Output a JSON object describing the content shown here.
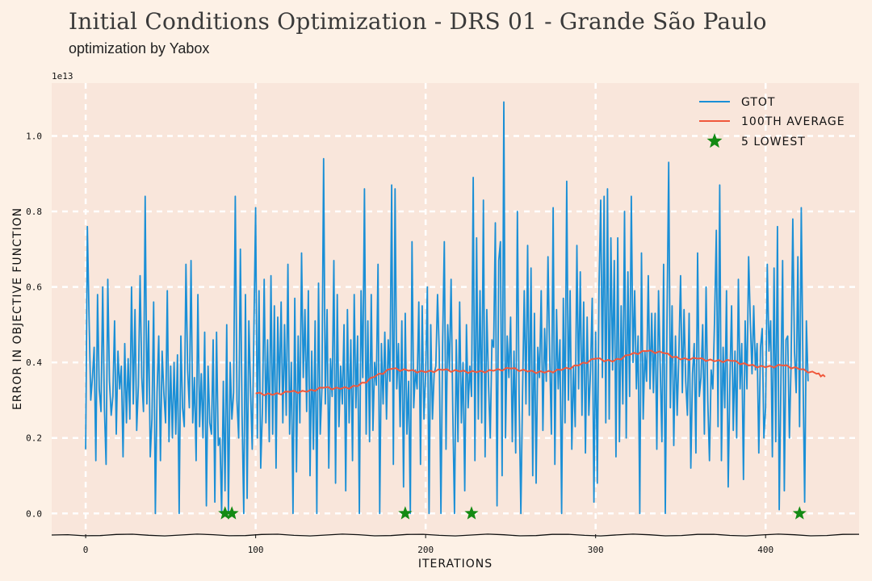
{
  "title": "Initial Conditions Optimization - DRS 01 - Grande São Paulo",
  "subtitle": "optimization by Yabox",
  "colors": {
    "background": "#fdf1e6",
    "plot_area": "#f9e6db",
    "gtot": "#1a8fd6",
    "average": "#f0583c",
    "lowest": "#138a13",
    "grid": "#ffffff"
  },
  "chart_data": {
    "type": "line",
    "xlabel": "ITERATIONS",
    "ylabel": "ERROR IN OBJECTIVE FUNCTION",
    "y_offset_label": "1e13",
    "xlim": [
      -20,
      455
    ],
    "ylim": [
      -0.055,
      1.14
    ],
    "xticks": [
      0,
      100,
      200,
      300,
      400
    ],
    "yticks": [
      0.0,
      0.2,
      0.4,
      0.6,
      0.8,
      1.0
    ],
    "ytick_labels": [
      "0.0",
      "0.2",
      "0.4",
      "0.6",
      "0.8",
      "1.0"
    ],
    "grid": true,
    "legend_position": "top-right",
    "legend": [
      "GTOT",
      "100TH AVERAGE",
      "5 LOWEST"
    ],
    "series": [
      {
        "name": "GTOT",
        "x_start": 0,
        "values": [
          0.17,
          0.76,
          0.52,
          0.3,
          0.36,
          0.44,
          0.14,
          0.58,
          0.33,
          0.27,
          0.6,
          0.28,
          0.13,
          0.62,
          0.35,
          0.26,
          0.31,
          0.51,
          0.21,
          0.43,
          0.33,
          0.39,
          0.15,
          0.45,
          0.24,
          0.41,
          0.25,
          0.6,
          0.29,
          0.54,
          0.22,
          0.34,
          0.63,
          0.36,
          0.27,
          0.84,
          0.29,
          0.51,
          0.15,
          0.25,
          0.56,
          0.0,
          0.32,
          0.47,
          0.14,
          0.43,
          0.32,
          0.24,
          0.59,
          0.19,
          0.39,
          0.2,
          0.4,
          0.21,
          0.42,
          0.0,
          0.47,
          0.28,
          0.23,
          0.66,
          0.38,
          0.28,
          0.67,
          0.24,
          0.36,
          0.14,
          0.58,
          0.23,
          0.37,
          0.2,
          0.48,
          0.02,
          0.39,
          0.24,
          0.21,
          0.46,
          0.03,
          0.48,
          0.18,
          0.2,
          0.0,
          0.35,
          0.06,
          0.5,
          0.0,
          0.4,
          0.25,
          0.32,
          0.84,
          0.3,
          0.2,
          0.7,
          0.26,
          0.0,
          0.58,
          0.04,
          0.51,
          0.33,
          0.17,
          0.49,
          0.81,
          0.2,
          0.59,
          0.12,
          0.28,
          0.62,
          0.24,
          0.46,
          0.19,
          0.63,
          0.21,
          0.55,
          0.12,
          0.52,
          0.32,
          0.56,
          0.24,
          0.5,
          0.26,
          0.66,
          0.21,
          0.4,
          0.0,
          0.57,
          0.11,
          0.47,
          0.24,
          0.69,
          0.36,
          0.54,
          0.27,
          0.59,
          0.1,
          0.43,
          0.17,
          0.51,
          0.0,
          0.61,
          0.21,
          0.33,
          0.94,
          0.29,
          0.54,
          0.12,
          0.41,
          0.31,
          0.67,
          0.08,
          0.58,
          0.23,
          0.39,
          0.29,
          0.5,
          0.06,
          0.54,
          0.24,
          0.46,
          0.14,
          0.58,
          0.28,
          0.47,
          0.0,
          0.59,
          0.36,
          0.86,
          0.21,
          0.51,
          0.19,
          0.58,
          0.22,
          0.4,
          0.34,
          0.66,
          0.0,
          0.45,
          0.29,
          0.48,
          0.25,
          0.46,
          0.35,
          0.87,
          0.13,
          0.86,
          0.33,
          0.45,
          0.23,
          0.51,
          0.07,
          0.53,
          0.21,
          0.35,
          0.0,
          0.72,
          0.28,
          0.38,
          0.33,
          0.56,
          0.13,
          0.55,
          0.25,
          0.37,
          0.6,
          0.0,
          0.5,
          0.25,
          0.37,
          0.39,
          0.58,
          0.43,
          0.0,
          0.45,
          0.72,
          0.17,
          0.5,
          0.38,
          0.62,
          0.27,
          0.0,
          0.46,
          0.19,
          0.56,
          0.24,
          0.4,
          0.06,
          0.5,
          0.28,
          0.39,
          0.31,
          0.89,
          0.14,
          0.73,
          0.25,
          0.59,
          0.24,
          0.83,
          0.15,
          0.54,
          0.34,
          0.2,
          0.46,
          0.44,
          0.77,
          0.02,
          0.67,
          0.72,
          0.1,
          1.09,
          0.2,
          0.47,
          0.36,
          0.52,
          0.19,
          0.43,
          0.16,
          0.8,
          0.31,
          0.0,
          0.32,
          0.59,
          0.29,
          0.71,
          0.26,
          0.65,
          0.1,
          0.53,
          0.08,
          0.44,
          0.36,
          0.59,
          0.22,
          0.49,
          0.35,
          0.68,
          0.42,
          0.21,
          0.81,
          0.13,
          0.54,
          0.33,
          0.46,
          0.0,
          0.57,
          0.24,
          0.88,
          0.3,
          0.59,
          0.17,
          0.39,
          0.23,
          0.71,
          0.33,
          0.64,
          0.26,
          0.56,
          0.16,
          0.52,
          0.26,
          0.38,
          0.57,
          0.03,
          0.48,
          0.08,
          0.6,
          0.83,
          0.36,
          0.84,
          0.24,
          0.86,
          0.25,
          0.73,
          0.38,
          0.67,
          0.15,
          0.73,
          0.19,
          0.55,
          0.29,
          0.8,
          0.2,
          0.64,
          0.31,
          0.84,
          0.4,
          0.59,
          0.33,
          0.47,
          0.0,
          0.69,
          0.25,
          0.43,
          0.35,
          0.63,
          0.33,
          0.53,
          0.32,
          0.53,
          0.17,
          0.59,
          0.39,
          0.19,
          0.66,
          0.0,
          0.51,
          0.93,
          0.28,
          0.55,
          0.18,
          0.47,
          0.26,
          0.42,
          0.63,
          0.32,
          0.54,
          0.35,
          0.26,
          0.53,
          0.12,
          0.37,
          0.45,
          0.16,
          0.69,
          0.31,
          0.36,
          0.5,
          0.21,
          0.6,
          0.3,
          0.14,
          0.38,
          0.33,
          0.52,
          0.75,
          0.23,
          0.87,
          0.14,
          0.44,
          0.28,
          0.59,
          0.07,
          0.35,
          0.55,
          0.22,
          0.43,
          0.2,
          0.62,
          0.33,
          0.45,
          0.09,
          0.51,
          0.33,
          0.68,
          0.51,
          0.37,
          0.55,
          0.38,
          0.45,
          0.16,
          0.44,
          0.49,
          0.2,
          0.28,
          0.66,
          0.43,
          0.51,
          0.15,
          0.65,
          0.19,
          0.76,
          0.01,
          0.35,
          0.67,
          0.06,
          0.46,
          0.47,
          0.2,
          0.4,
          0.78,
          0.43,
          0.32,
          0.68,
          0.23,
          0.81,
          0.38,
          0.03,
          0.51,
          0.35
        ]
      },
      {
        "name": "100TH AVERAGE",
        "x": [
          100,
          110,
          120,
          130,
          140,
          150,
          160,
          170,
          180,
          190,
          200,
          210,
          220,
          230,
          240,
          250,
          260,
          270,
          280,
          290,
          300,
          310,
          320,
          330,
          340,
          350,
          360,
          370,
          380,
          390,
          400,
          410,
          420,
          430,
          435
        ],
        "values": [
          0.318,
          0.314,
          0.322,
          0.322,
          0.333,
          0.33,
          0.337,
          0.362,
          0.383,
          0.378,
          0.374,
          0.38,
          0.376,
          0.374,
          0.378,
          0.384,
          0.376,
          0.373,
          0.38,
          0.392,
          0.41,
          0.402,
          0.42,
          0.43,
          0.425,
          0.408,
          0.41,
          0.403,
          0.404,
          0.392,
          0.387,
          0.392,
          0.382,
          0.37,
          0.362
        ]
      },
      {
        "name": "5 LOWEST",
        "x": [
          82,
          86,
          188,
          227,
          420
        ],
        "values": [
          0.0,
          0.0,
          0.0,
          0.0,
          0.0
        ]
      }
    ]
  }
}
